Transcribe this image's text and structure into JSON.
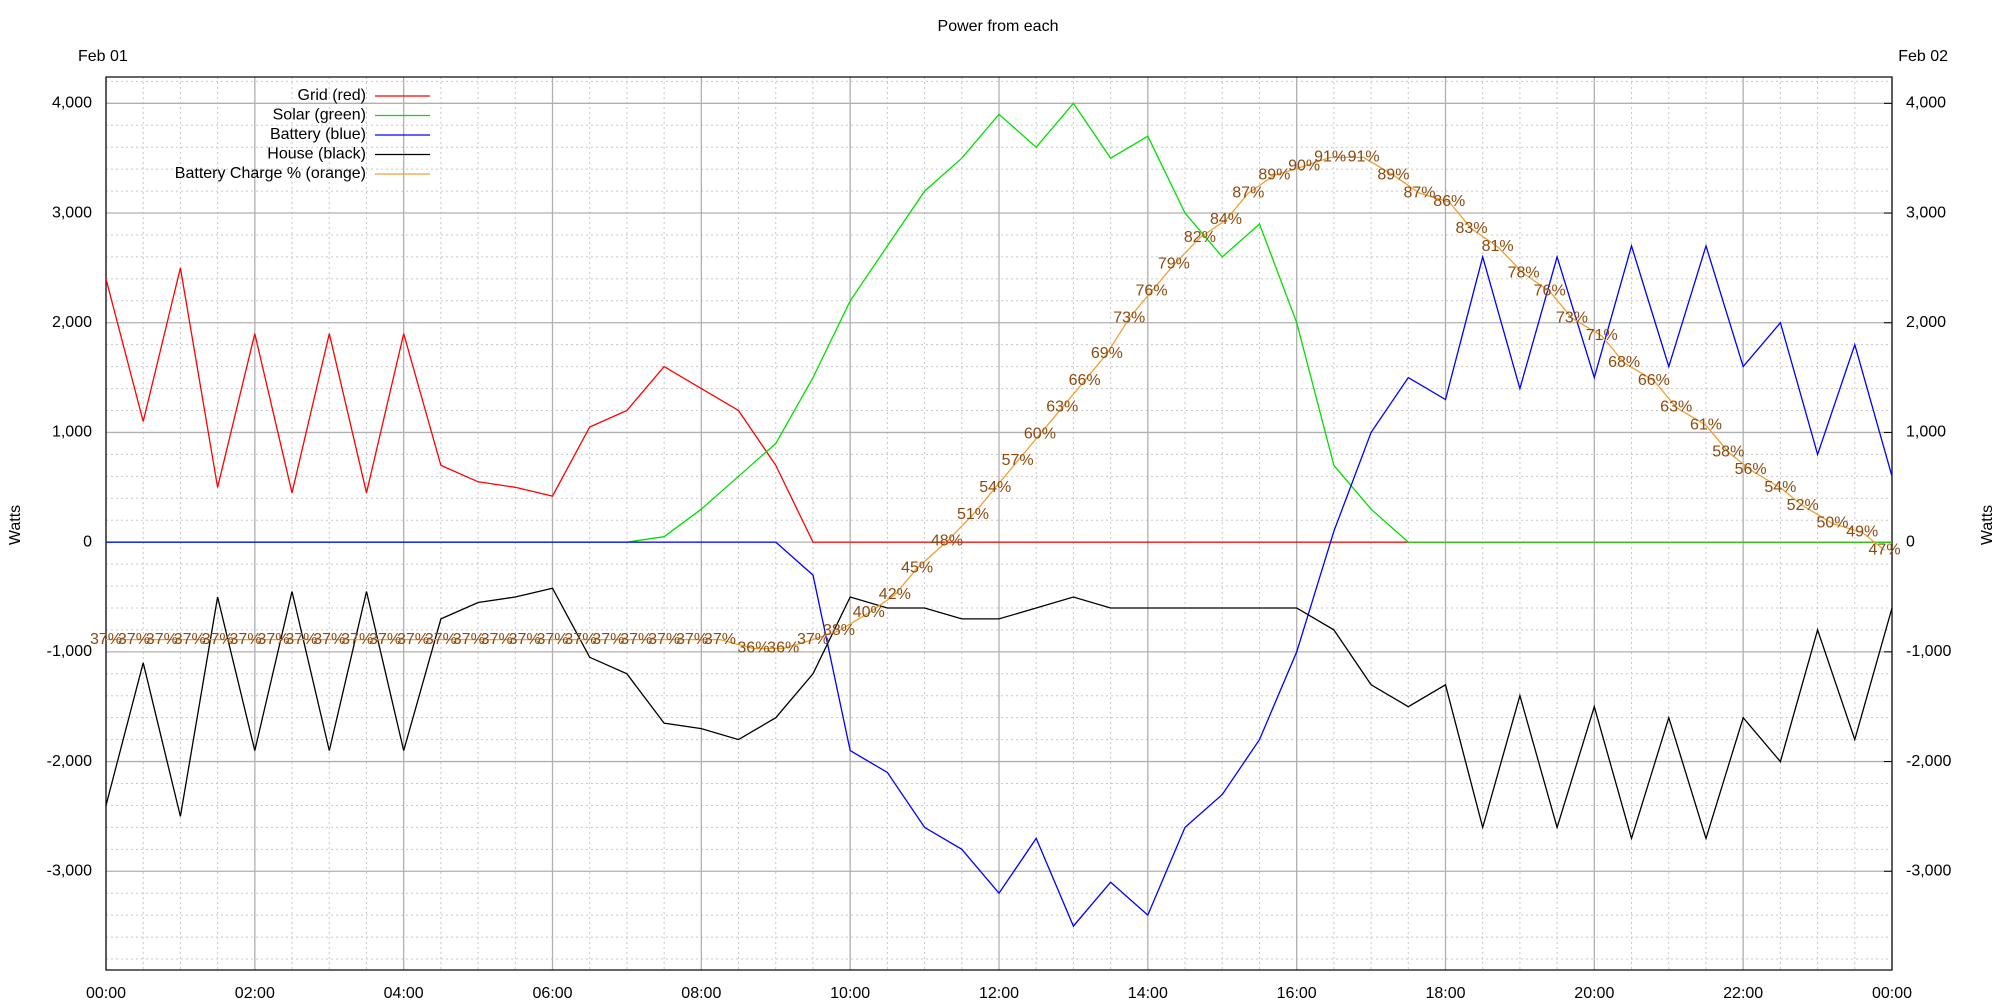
{
  "chart_data": {
    "type": "line",
    "title": "Power from each",
    "annotations": {
      "start_date": "Feb 01",
      "end_date": "Feb 02"
    },
    "ylabel": "Watts",
    "y2label": "Watts",
    "xlim": [
      0,
      24
    ],
    "xticks": [
      {
        "value": 0,
        "label": "00:00"
      },
      {
        "value": 2,
        "label": "02:00"
      },
      {
        "value": 4,
        "label": "04:00"
      },
      {
        "value": 6,
        "label": "06:00"
      },
      {
        "value": 8,
        "label": "08:00"
      },
      {
        "value": 10,
        "label": "10:00"
      },
      {
        "value": 12,
        "label": "12:00"
      },
      {
        "value": 14,
        "label": "14:00"
      },
      {
        "value": 16,
        "label": "16:00"
      },
      {
        "value": 18,
        "label": "18:00"
      },
      {
        "value": 20,
        "label": "20:00"
      },
      {
        "value": 22,
        "label": "22:00"
      },
      {
        "value": 24,
        "label": "00:00"
      }
    ],
    "ylim": [
      -3900,
      4240
    ],
    "yticks": [
      {
        "value": -3000,
        "label": "-3,000"
      },
      {
        "value": -2000,
        "label": "-2,000"
      },
      {
        "value": -1000,
        "label": "-1,000"
      },
      0,
      {
        "value": 1000,
        "label": "1,000"
      },
      {
        "value": 2000,
        "label": "2,000"
      },
      {
        "value": 3000,
        "label": "3,000"
      },
      {
        "value": 4000,
        "label": "4,000"
      }
    ],
    "y2lim": [
      -3900,
      4240
    ],
    "y2ticks": [
      {
        "value": -3000,
        "label": "-3,000"
      },
      {
        "value": -2000,
        "label": "-2,000"
      },
      {
        "value": -1000,
        "label": "-1,000"
      },
      0,
      {
        "value": 1000,
        "label": "1,000"
      },
      {
        "value": 2000,
        "label": "2,000"
      },
      {
        "value": 3000,
        "label": "3,000"
      },
      {
        "value": 4000,
        "label": "4,000"
      }
    ],
    "grid": true,
    "legend": "top-left",
    "x": [
      0,
      0.5,
      1,
      1.5,
      2,
      2.5,
      3,
      3.5,
      4,
      4.5,
      5,
      5.5,
      6,
      6.5,
      7,
      7.5,
      8,
      8.5,
      9,
      9.5,
      10,
      10.5,
      11,
      11.5,
      12,
      12.5,
      13,
      13.5,
      14,
      14.5,
      15,
      15.5,
      16,
      16.5,
      17,
      17.5,
      18,
      18.5,
      19,
      19.5,
      20,
      20.5,
      21,
      21.5,
      22,
      22.5,
      23,
      23.5,
      24
    ],
    "series": [
      {
        "name": "Grid (red)",
        "color": "#ff0000",
        "values": [
          2400,
          1100,
          2500,
          500,
          1900,
          450,
          1900,
          450,
          1900,
          700,
          550,
          500,
          420,
          1050,
          1200,
          1600,
          1400,
          1200,
          700,
          0,
          0,
          0,
          0,
          0,
          0,
          0,
          0,
          0,
          0,
          0,
          0,
          0,
          0,
          0,
          0,
          0,
          0,
          0,
          0,
          0,
          0,
          0,
          0,
          0,
          0,
          0,
          0,
          0,
          0
        ]
      },
      {
        "name": "Solar (green)",
        "color": "#00e000",
        "values": [
          0,
          0,
          0,
          0,
          0,
          0,
          0,
          0,
          0,
          0,
          0,
          0,
          0,
          0,
          0,
          50,
          300,
          600,
          900,
          1500,
          2200,
          2700,
          3200,
          3500,
          3900,
          3600,
          4000,
          3500,
          3700,
          3000,
          2600,
          2900,
          2000,
          700,
          300,
          0,
          0,
          0,
          0,
          0,
          0,
          0,
          0,
          0,
          0,
          0,
          0,
          0,
          0
        ]
      },
      {
        "name": "Battery (blue)",
        "color": "#0000ff",
        "values": [
          0,
          0,
          0,
          0,
          0,
          0,
          0,
          0,
          0,
          0,
          0,
          0,
          0,
          0,
          0,
          0,
          0,
          0,
          0,
          -300,
          -1900,
          -2100,
          -2600,
          -2800,
          -3200,
          -2700,
          -3500,
          -3100,
          -3400,
          -2600,
          -2300,
          -1800,
          -1000,
          100,
          1000,
          1500,
          1300,
          2600,
          1400,
          2600,
          1500,
          2700,
          1600,
          2700,
          1600,
          2000,
          800,
          1800,
          600
        ]
      },
      {
        "name": "House (black)",
        "color": "#000000",
        "values": [
          -2400,
          -1100,
          -2500,
          -500,
          -1900,
          -450,
          -1900,
          -450,
          -1900,
          -700,
          -550,
          -500,
          -420,
          -1050,
          -1200,
          -1650,
          -1700,
          -1800,
          -1600,
          -1200,
          -500,
          -600,
          -600,
          -700,
          -700,
          -600,
          -500,
          -600,
          -600,
          -600,
          -600,
          -600,
          -600,
          -800,
          -1300,
          -1500,
          -1300,
          -2600,
          -1400,
          -2600,
          -1500,
          -2700,
          -1600,
          -2700,
          -1600,
          -2000,
          -800,
          -1800,
          -600
        ]
      },
      {
        "name": "Battery Charge % (orange)",
        "color": "#f0a030",
        "label_color": "#8b4a10",
        "ylim": [
          0,
          100
        ],
        "x": [
          0,
          0.375,
          0.75,
          1.125,
          1.5,
          1.875,
          2.25,
          2.625,
          3,
          3.375,
          3.75,
          4.125,
          4.5,
          4.875,
          5.25,
          5.625,
          6,
          6.375,
          6.75,
          7.125,
          7.5,
          7.875,
          8.25,
          8.7,
          9.1,
          9.5,
          9.85,
          10.25,
          10.6,
          10.9,
          11.3,
          11.65,
          11.95,
          12.25,
          12.55,
          12.85,
          13.15,
          13.45,
          13.75,
          14.05,
          14.35,
          14.7,
          15.05,
          15.35,
          15.7,
          16.1,
          16.45,
          16.9,
          17.3,
          17.65,
          18.05,
          18.35,
          18.7,
          19.05,
          19.4,
          19.7,
          20.1,
          20.4,
          20.8,
          21.1,
          21.5,
          21.8,
          22.1,
          22.5,
          22.8,
          23.2,
          23.6,
          23.9
        ],
        "values": [
          37,
          37,
          37,
          37,
          37,
          37,
          37,
          37,
          37,
          37,
          37,
          37,
          37,
          37,
          37,
          37,
          37,
          37,
          37,
          37,
          37,
          37,
          37,
          36,
          36,
          37,
          38,
          40,
          42,
          45,
          48,
          51,
          54,
          57,
          60,
          63,
          66,
          69,
          73,
          76,
          79,
          82,
          84,
          87,
          89,
          90,
          91,
          91,
          89,
          87,
          86,
          83,
          81,
          78,
          76,
          73,
          71,
          68,
          66,
          63,
          61,
          58,
          56,
          54,
          52,
          50,
          49,
          47
        ],
        "value_labels": [
          "37%",
          "37%",
          "37%",
          "37%",
          "37%",
          "37%",
          "37%",
          "37%",
          "37%",
          "37%",
          "37%",
          "37%",
          "37%",
          "37%",
          "37%",
          "37%",
          "37%",
          "37%",
          "37%",
          "37%",
          "37%",
          "37%",
          "37%",
          "36%",
          "36%",
          "37%",
          "38%",
          "40%",
          "42%",
          "45%",
          "48%",
          "51%",
          "54%",
          "57%",
          "60%",
          "63%",
          "66%",
          "69%",
          "73%",
          "76%",
          "79%",
          "82%",
          "84%",
          "87%",
          "89%",
          "90%",
          "91%",
          "91%",
          "89%",
          "87%",
          "86%",
          "83%",
          "81%",
          "78%",
          "76%",
          "73%",
          "71%",
          "68%",
          "66%",
          "63%",
          "61%",
          "58%",
          "56%",
          "54%",
          "52%",
          "50%",
          "49%",
          "47%"
        ]
      }
    ]
  }
}
